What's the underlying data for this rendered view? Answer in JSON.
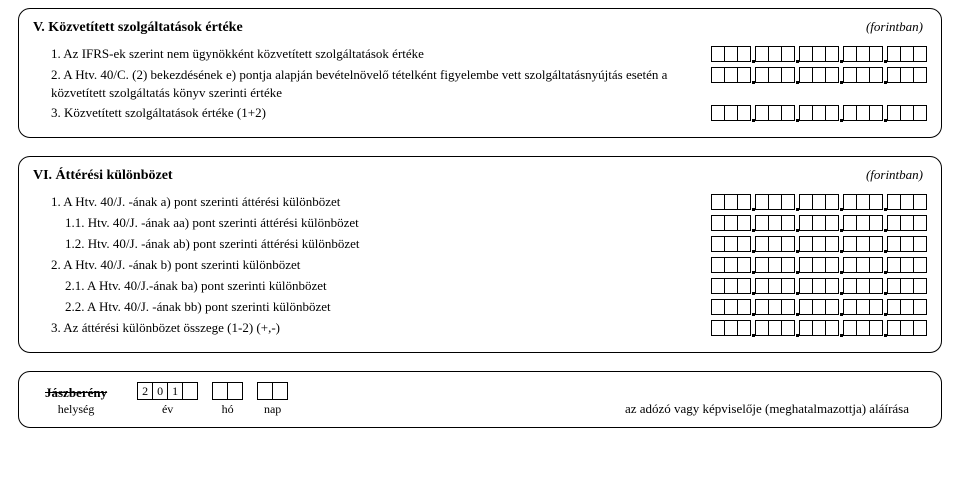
{
  "sectionV": {
    "title": "V. Közvetített szolgáltatások értéke",
    "unit": "(forintban)",
    "items": [
      {
        "label": "1. Az IFRS-ek szerint nem ügynökként közvetített szolgáltatások értéke",
        "indent": 1
      },
      {
        "label": "2. A Htv. 40/C. (2) bekezdésének e) pontja alapján bevételnövelő tételként figyelembe vett szolgáltatásnyújtás esetén a közvetített szolgáltatás könyv szerinti értéke",
        "indent": 1
      },
      {
        "label": "3. Közvetített szolgáltatások értéke (1+2)",
        "indent": 1
      }
    ]
  },
  "sectionVI": {
    "title": "VI. Áttérési különbözet",
    "unit": "(forintban)",
    "items": [
      {
        "label": "1. A Htv. 40/J. -ának a) pont szerinti áttérési különbözet",
        "indent": 1
      },
      {
        "label": "1.1. Htv. 40/J. -ának aa) pont szerinti áttérési különbözet",
        "indent": 2
      },
      {
        "label": "1.2. Htv. 40/J. -ának ab) pont szerinti áttérési különbözet",
        "indent": 2
      },
      {
        "label": "2. A Htv. 40/J. -ának b) pont szerinti különbözet",
        "indent": 1
      },
      {
        "label": "2.1. A Htv. 40/J.-ának ba) pont szerinti különbözet",
        "indent": 2
      },
      {
        "label": "2.2. A Htv. 40/J. -ának bb) pont szerinti különbözet",
        "indent": 2
      },
      {
        "label": "3. Az áttérési különbözet összege (1-2) (+,-)",
        "indent": 1
      }
    ]
  },
  "footer": {
    "place_name": "Jászberény",
    "place_caption": "helység",
    "year_prefix": [
      "2",
      "0",
      "1"
    ],
    "year_cap": "év",
    "month_cap": "hó",
    "day_cap": "nap",
    "signature": "az adózó vagy képviselője (meghatalmazottja) aláírása"
  },
  "box_groups": 5,
  "box_per_group": 3,
  "colors": {
    "border": "#000000",
    "bg": "#ffffff",
    "text": "#000000"
  }
}
